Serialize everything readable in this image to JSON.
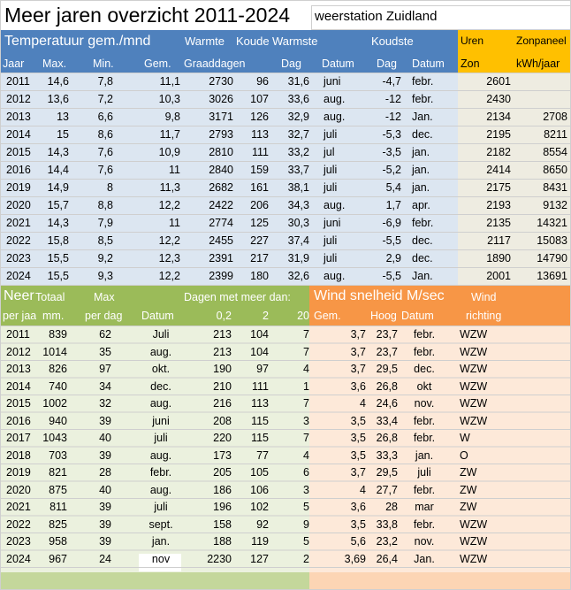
{
  "title": "Meer jaren overzicht 2011-2024",
  "station": "weerstation Zuidland",
  "colors": {
    "blue_header": "#4f81bd",
    "blue_body": "#dce6f1",
    "orange_header": "#f79646",
    "orange_body": "#fde9d9",
    "green_header": "#9bbb59",
    "green_body": "#ebf1de",
    "sun_body": "#eeece1",
    "sun_header": "#ffc000",
    "grid": "#d4d4d4"
  },
  "temp": {
    "header1": {
      "title": "Temperatuur gem./mnd",
      "warmte": "Warmte",
      "koude": "Koude",
      "warmste": "Warmste",
      "koudste": "Koudste",
      "uren": "Uren",
      "zonpaneel": "Zonpaneel"
    },
    "header2": [
      "Jaar",
      "Max.",
      "Min.",
      "Gem.",
      "Graaddagen",
      "Dag",
      "Datum",
      "Dag",
      "Datum",
      "Zon",
      "kWh/jaar"
    ],
    "rows": [
      [
        "2011",
        "14,6",
        "7,8",
        "11,1",
        "2730",
        "96",
        "31,6",
        "juni",
        "-4,7",
        "febr.",
        "2601",
        ""
      ],
      [
        "2012",
        "13,6",
        "7,2",
        "10,3",
        "3026",
        "107",
        "33,6",
        "aug.",
        "-12",
        "febr.",
        "2430",
        ""
      ],
      [
        "2013",
        "13",
        "6,6",
        "9,8",
        "3171",
        "126",
        "32,9",
        "aug.",
        "-12",
        "Jan.",
        "2134",
        "2708"
      ],
      [
        "2014",
        "15",
        "8,6",
        "11,7",
        "2793",
        "113",
        "32,7",
        "juli",
        "-5,3",
        "dec.",
        "2195",
        "8211"
      ],
      [
        "2015",
        "14,3",
        "7,6",
        "10,9",
        "2810",
        "111",
        "33,2",
        "jul",
        "-3,5",
        "jan.",
        "2182",
        "8554"
      ],
      [
        "2016",
        "14,4",
        "7,6",
        "11",
        "2840",
        "159",
        "33,7",
        "juli",
        "-5,2",
        "jan.",
        "2414",
        "8650"
      ],
      [
        "2019",
        "14,9",
        "8",
        "11,3",
        "2682",
        "161",
        "38,1",
        "juli",
        "5,4",
        "jan.",
        "2175",
        "8431"
      ],
      [
        "2020",
        "15,7",
        "8,8",
        "12,2",
        "2422",
        "206",
        "34,3",
        "aug.",
        "1,7",
        "apr.",
        "2193",
        "9132"
      ],
      [
        "2021",
        "14,3",
        "7,9",
        "11",
        "2774",
        "125",
        "30,3",
        "juni",
        "-6,9",
        "febr.",
        "2135",
        "14321"
      ],
      [
        "2022",
        "15,8",
        "8,5",
        "12,2",
        "2455",
        "227",
        "37,4",
        "juli",
        "-5,5",
        "dec.",
        "2117",
        "15083"
      ],
      [
        "2023",
        "15,5",
        "9,2",
        "12,3",
        "2391",
        "217",
        "31,9",
        "juli",
        "2,9",
        "dec.",
        "1890",
        "14790"
      ],
      [
        "2024",
        "15,5",
        "9,3",
        "12,2",
        "2399",
        "180",
        "32,6",
        "aug.",
        "-5,5",
        "Jan.",
        "2001",
        "13691"
      ]
    ]
  },
  "neer": {
    "header1": {
      "neer": "Neer",
      "totaal": "Totaal",
      "max": "Max",
      "dagen": "Dagen met meer dan:",
      "wind": "Wind snelheid M/sec",
      "windr": "Wind"
    },
    "header2": {
      "perjaar": "per jaar",
      "mm": "mm.",
      "perdag": "per dag",
      "datum": "Datum",
      "d02": "0,2",
      "d2": "2",
      "d20": "20",
      "gem": "Gem.",
      "hoog": "Hoog",
      "wdatum": "Datum",
      "richting": "richting"
    },
    "rows": [
      [
        "2011",
        "839",
        "62",
        "Juli",
        "213",
        "104",
        "7",
        "3,7",
        "23,7",
        "febr.",
        "WZW"
      ],
      [
        "2012",
        "1014",
        "35",
        "aug.",
        "213",
        "104",
        "7",
        "3,7",
        "23,7",
        "febr.",
        "WZW"
      ],
      [
        "2013",
        "826",
        "97",
        "okt.",
        "190",
        "97",
        "4",
        "3,7",
        "29,5",
        "dec.",
        "WZW"
      ],
      [
        "2014",
        "740",
        "34",
        "dec.",
        "210",
        "111",
        "1",
        "3,6",
        "26,8",
        "okt",
        "WZW"
      ],
      [
        "2015",
        "1002",
        "32",
        "aug.",
        "216",
        "113",
        "7",
        "4",
        "24,6",
        "nov.",
        "WZW"
      ],
      [
        "2016",
        "940",
        "39",
        "juni",
        "208",
        "115",
        "3",
        "3,5",
        "33,4",
        "febr.",
        "WZW"
      ],
      [
        "2017",
        "1043",
        "40",
        "juli",
        "220",
        "115",
        "7",
        "3,5",
        "26,8",
        "febr.",
        "W"
      ],
      [
        "2018",
        "703",
        "39",
        "aug.",
        "173",
        "77",
        "4",
        "3,5",
        "33,3",
        "jan.",
        "O"
      ],
      [
        "2019",
        "821",
        "28",
        "febr.",
        "205",
        "105",
        "6",
        "3,7",
        "29,5",
        "juli",
        "ZW"
      ],
      [
        "2020",
        "875",
        "40",
        "aug.",
        "186",
        "106",
        "3",
        "4",
        "27,7",
        "febr.",
        "ZW"
      ],
      [
        "2021",
        "811",
        "39",
        "juli",
        "196",
        "102",
        "5",
        "3,6",
        "28",
        "mar",
        "ZW"
      ],
      [
        "2022",
        "825",
        "39",
        "sept.",
        "158",
        "92",
        "9",
        "3,5",
        "33,8",
        "febr.",
        "WZW"
      ],
      [
        "2023",
        "958",
        "39",
        "jan.",
        "188",
        "119",
        "5",
        "5,6",
        "23,2",
        "nov.",
        "WZW"
      ],
      [
        "2024",
        "967",
        "24",
        "nov",
        "2230",
        "127",
        "2",
        "3,69",
        "26,4",
        "Jan.",
        "WZW"
      ]
    ]
  }
}
